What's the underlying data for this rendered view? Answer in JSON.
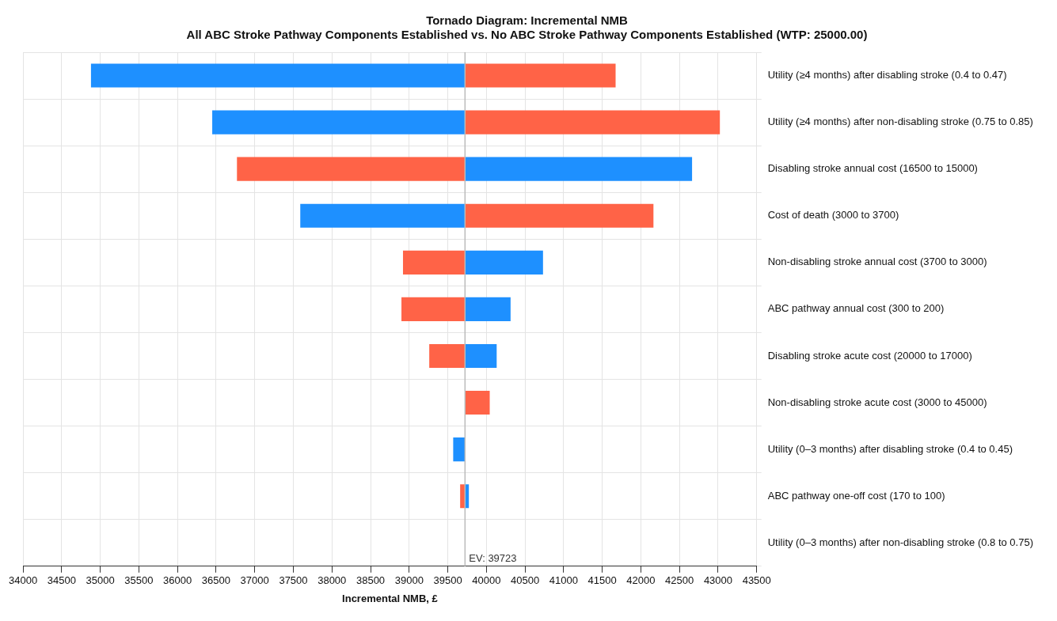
{
  "chart_data": {
    "type": "bar",
    "orientation": "horizontal",
    "title": "Tornado Diagram: Incremental NMB",
    "subtitle": "All ABC Stroke Pathway Components Established vs. No ABC Stroke Pathway Components Established (WTP: 25000.00)",
    "xlabel": "Incremental NMB, £",
    "categories": [
      "Utility (≥4 months) after disabling stroke (0.4 to 0.47)",
      "Utility (≥4 months) after non-disabling stroke (0.75 to 0.85)",
      "Disabling stroke annual cost (16500 to 15000)",
      "Cost of death (3000 to 3700)",
      "Non-disabling stroke annual cost (3700 to 3000)",
      "ABC pathway annual cost (300 to 200)",
      "Disabling stroke acute cost (20000 to 17000)",
      "Non-disabling stroke acute cost (3000 to 45000)",
      "Utility (0–3 months) after disabling stroke (0.4 to 0.45)",
      "ABC pathway one-off cost (170 to 100)",
      "Utility (0–3 months) after non-disabling stroke (0.8 to 0.75)"
    ],
    "series": [
      {
        "color": "#1e90ff",
        "base": [
          34880,
          36450,
          39723,
          37590,
          39723,
          39723,
          39723,
          null,
          39570,
          39723,
          null
        ],
        "values": [
          4843,
          3273,
          2940,
          2133,
          1010,
          590,
          410,
          null,
          153,
          50,
          null
        ]
      },
      {
        "color": "#ff6347",
        "base": [
          39723,
          39723,
          36770,
          39723,
          38920,
          38900,
          39260,
          39723,
          null,
          39660,
          null
        ],
        "values": [
          1950,
          3300,
          2953,
          2440,
          803,
          823,
          463,
          320,
          null,
          63,
          null
        ]
      }
    ],
    "xlim": [
      34000,
      43500
    ],
    "xticks": [
      34000,
      34500,
      35000,
      35500,
      36000,
      36500,
      37000,
      37500,
      38000,
      38500,
      39000,
      39500,
      40000,
      40500,
      41000,
      41500,
      42000,
      42500,
      43000,
      43500
    ],
    "ref_lines": [
      {
        "axis": "x",
        "value": 39723,
        "label": "EV: 39723",
        "color": "#bbbbbb"
      }
    ],
    "grid": true,
    "legend": false
  }
}
